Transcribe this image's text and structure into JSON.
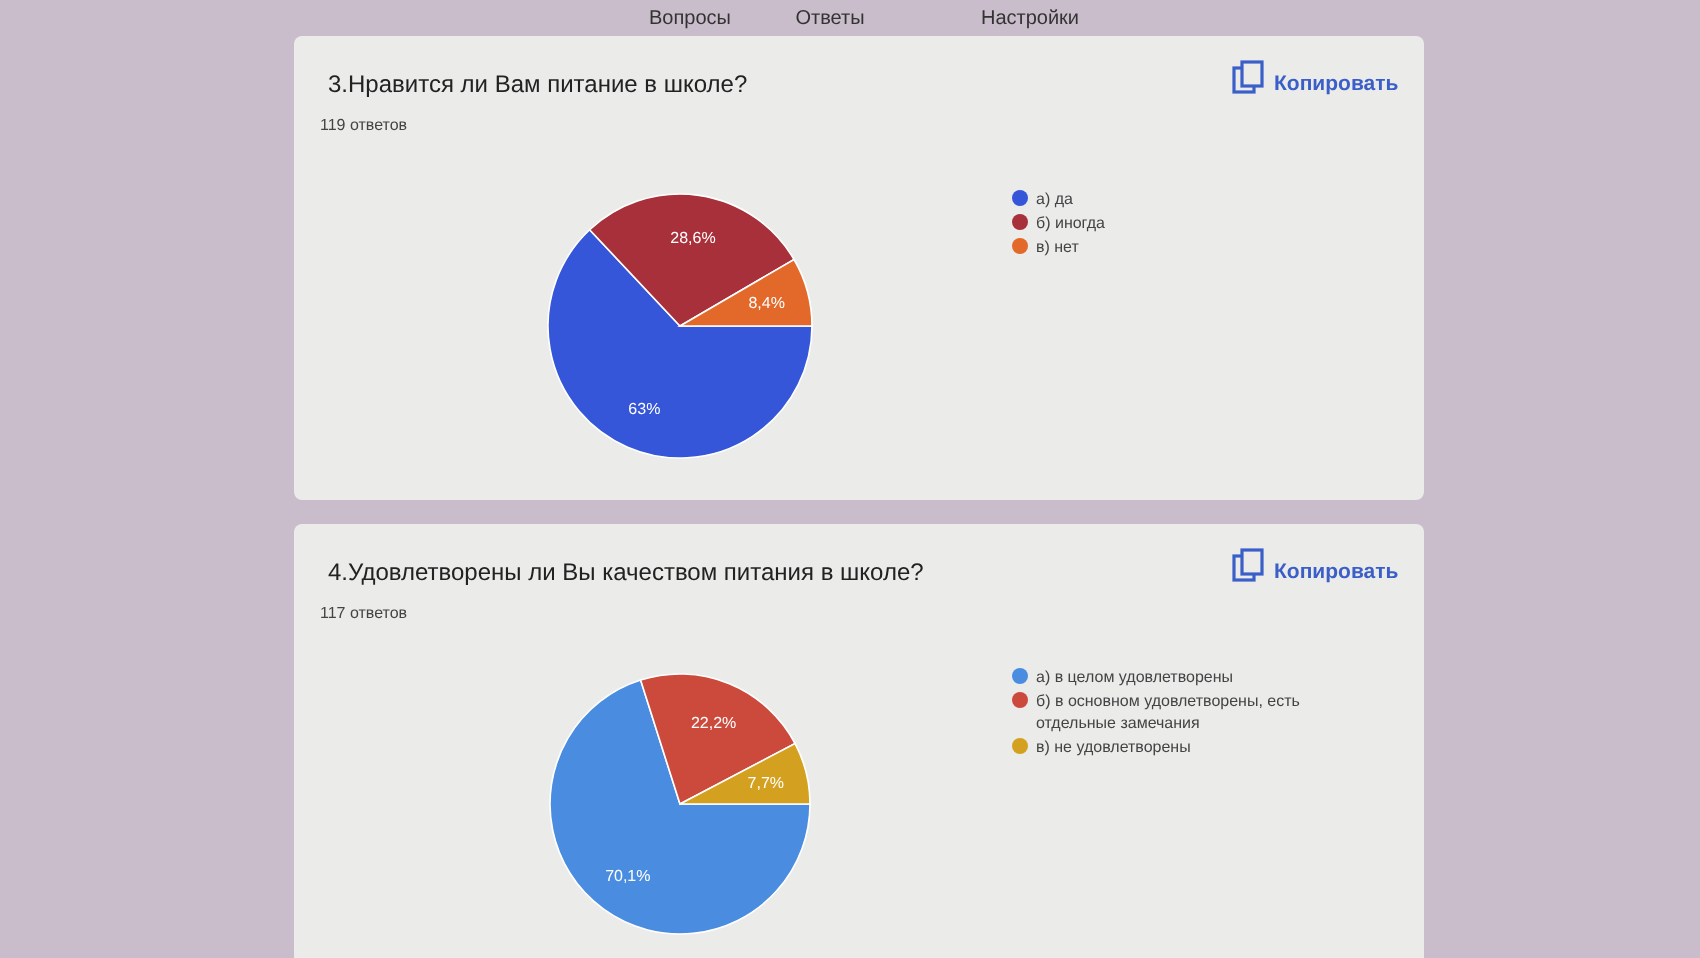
{
  "chart_data": [
    {
      "type": "pie",
      "title": "3.Нравится ли Вам питание в школе?",
      "subtitle": "119 ответов",
      "annotations": [
        "Вопросы",
        "Ответы",
        "Настройки",
        "Копировать"
      ],
      "categories": [
        "а) да",
        "б) иногда",
        "в) нет"
      ],
      "values": [
        63,
        28.6,
        8.4
      ],
      "value_labels": [
        "63%",
        "28,6%",
        "8,4%"
      ],
      "colors": [
        "#3556d8",
        "#a8303a",
        "#e2692a"
      ],
      "legend": "right"
    },
    {
      "type": "pie",
      "title": "4.Удовлетворены ли Вы качеством питания в школе?",
      "subtitle": "117 ответов",
      "annotations": [
        "Копировать"
      ],
      "categories": [
        "а) в целом удовлетворены",
        "б) в основном удовлетворены, есть отдельные замечания",
        "в) не удовлетворены"
      ],
      "values": [
        70.1,
        22.2,
        7.7
      ],
      "value_labels": [
        "70,1%",
        "22,2%",
        "7,7%"
      ],
      "colors": [
        "#4a8de0",
        "#cc4a3c",
        "#d4a020"
      ],
      "legend": "right"
    }
  ]
}
